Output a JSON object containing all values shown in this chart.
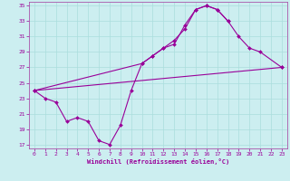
{
  "xlabel": "Windchill (Refroidissement éolien,°C)",
  "bg_color": "#cceef0",
  "grid_color": "#aadddd",
  "line_color": "#990099",
  "spine_color": "#aa55aa",
  "xlim": [
    -0.5,
    23.5
  ],
  "ylim": [
    16.5,
    35.5
  ],
  "yticks": [
    17,
    19,
    21,
    23,
    25,
    27,
    29,
    31,
    33,
    35
  ],
  "xticks": [
    0,
    1,
    2,
    3,
    4,
    5,
    6,
    7,
    8,
    9,
    10,
    11,
    12,
    13,
    14,
    15,
    16,
    17,
    18,
    19,
    20,
    21,
    22,
    23
  ],
  "series": [
    {
      "x": [
        0,
        1,
        2,
        3,
        4,
        5,
        6,
        7,
        8,
        9,
        10,
        11,
        12,
        13,
        14,
        15,
        16,
        17,
        18
      ],
      "y": [
        24.0,
        23.0,
        22.5,
        20.0,
        20.5,
        20.0,
        17.5,
        17.0,
        19.5,
        24.0,
        27.5,
        28.5,
        29.5,
        30.0,
        32.5,
        34.5,
        35.0,
        34.5,
        33.0
      ]
    },
    {
      "x": [
        0,
        10,
        11,
        12,
        13,
        14,
        15,
        16,
        17,
        18,
        19,
        20,
        21,
        23
      ],
      "y": [
        24.0,
        27.5,
        28.5,
        29.5,
        30.5,
        32.0,
        34.5,
        35.0,
        34.5,
        33.0,
        31.0,
        29.5,
        29.0,
        27.0
      ]
    },
    {
      "x": [
        0,
        23
      ],
      "y": [
        24.0,
        27.0
      ]
    }
  ]
}
